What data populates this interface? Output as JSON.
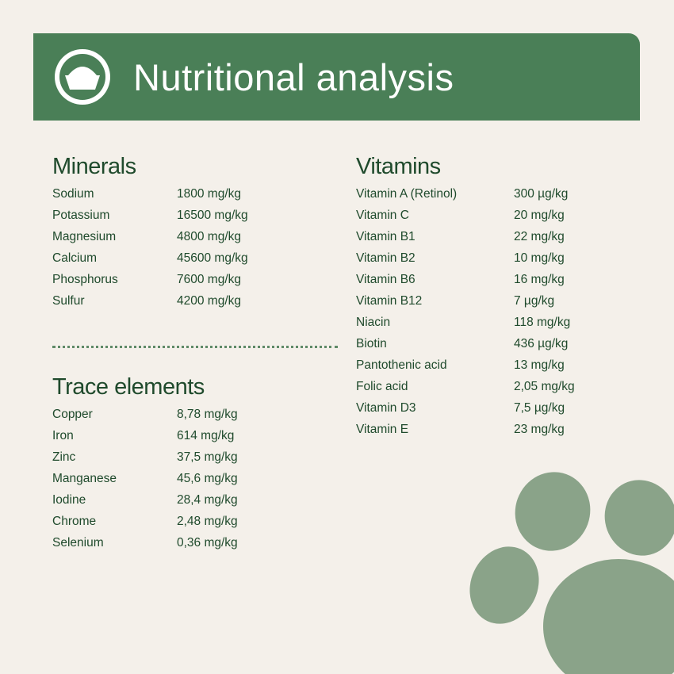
{
  "header": {
    "title": "Nutritional analysis"
  },
  "sections": [
    {
      "title": "Minerals",
      "rows": [
        [
          "Sodium",
          "1800 mg/kg"
        ],
        [
          "Potassium",
          "16500 mg/kg"
        ],
        [
          "Magnesium",
          "4800 mg/kg"
        ],
        [
          "Calcium",
          "45600 mg/kg"
        ],
        [
          "Phosphorus",
          "7600 mg/kg"
        ],
        [
          "Sulfur",
          "4200 mg/kg"
        ]
      ]
    },
    {
      "title": "Trace elements",
      "rows": [
        [
          "Copper",
          "8,78 mg/kg"
        ],
        [
          "Iron",
          "614 mg/kg"
        ],
        [
          "Zinc",
          "37,5 mg/kg"
        ],
        [
          "Manganese",
          "45,6 mg/kg"
        ],
        [
          "Iodine",
          "28,4 mg/kg"
        ],
        [
          "Chrome",
          "2,48 mg/kg"
        ],
        [
          "Selenium",
          "0,36 mg/kg"
        ]
      ]
    },
    {
      "title": "Vitamins",
      "rows": [
        [
          "Vitamin A (Retinol)",
          "300 µg/kg"
        ],
        [
          "Vitamin C",
          "20 mg/kg"
        ],
        [
          "Vitamin B1",
          "22 mg/kg"
        ],
        [
          "Vitamin B2",
          "10 mg/kg"
        ],
        [
          "Vitamin B6",
          "16 mg/kg"
        ],
        [
          "Vitamin B12",
          "7 µg/kg"
        ],
        [
          "Niacin",
          "118 mg/kg"
        ],
        [
          "Biotin",
          "436 µg/kg"
        ],
        [
          "Pantothenic acid",
          "13 mg/kg"
        ],
        [
          "Folic acid",
          "2,05 mg/kg"
        ],
        [
          "Vitamin D3",
          "7,5 µg/kg"
        ],
        [
          "Vitamin E",
          "23 mg/kg"
        ]
      ]
    }
  ]
}
